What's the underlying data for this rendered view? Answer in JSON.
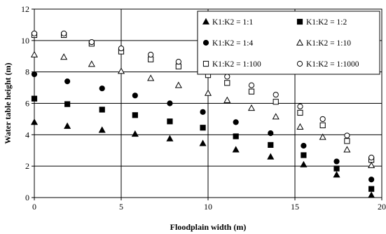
{
  "chart_data": {
    "type": "scatter",
    "xlabel": "Floodplain width (m)",
    "ylabel": "Water table height (m)",
    "xlim": [
      0,
      20
    ],
    "ylim": [
      0,
      12
    ],
    "x_ticks": [
      0,
      5,
      10,
      15,
      20
    ],
    "y_ticks": [
      0,
      2,
      4,
      6,
      8,
      10,
      12
    ],
    "grid": "major vertical and horizontal lines",
    "legend_position": "top-right",
    "series": [
      {
        "name": "K1:K2 = 1:1",
        "marker": "triangle-filled",
        "points": [
          [
            0,
            4.8
          ],
          [
            1.9,
            4.55
          ],
          [
            3.9,
            4.3
          ],
          [
            5.8,
            4.05
          ],
          [
            7.8,
            3.75
          ],
          [
            9.7,
            3.45
          ],
          [
            11.6,
            3.05
          ],
          [
            13.6,
            2.6
          ],
          [
            15.5,
            2.1
          ],
          [
            17.4,
            1.45
          ],
          [
            19.4,
            0.15
          ]
        ]
      },
      {
        "name": "K1:K2 = 1:2",
        "marker": "square-filled",
        "points": [
          [
            0,
            6.3
          ],
          [
            1.9,
            5.95
          ],
          [
            3.9,
            5.6
          ],
          [
            5.8,
            5.25
          ],
          [
            7.8,
            4.85
          ],
          [
            9.7,
            4.45
          ],
          [
            11.6,
            3.9
          ],
          [
            13.6,
            3.35
          ],
          [
            15.5,
            2.7
          ],
          [
            17.4,
            1.85
          ],
          [
            19.4,
            0.55
          ]
        ]
      },
      {
        "name": "K1:K2 = 1:4",
        "marker": "circle-filled",
        "points": [
          [
            0,
            7.85
          ],
          [
            1.9,
            7.4
          ],
          [
            3.9,
            6.95
          ],
          [
            5.8,
            6.5
          ],
          [
            7.8,
            6.0
          ],
          [
            9.7,
            5.45
          ],
          [
            11.6,
            4.8
          ],
          [
            13.6,
            4.1
          ],
          [
            15.5,
            3.3
          ],
          [
            17.4,
            2.3
          ],
          [
            19.4,
            1.15
          ]
        ]
      },
      {
        "name": "K1:K2 = 1:10",
        "marker": "triangle-open",
        "points": [
          [
            0,
            9.1
          ],
          [
            1.7,
            8.95
          ],
          [
            3.3,
            8.5
          ],
          [
            5.0,
            8.05
          ],
          [
            6.7,
            7.6
          ],
          [
            8.3,
            7.15
          ],
          [
            10.0,
            6.65
          ],
          [
            11.1,
            6.2
          ],
          [
            12.5,
            5.7
          ],
          [
            13.9,
            5.15
          ],
          [
            15.3,
            4.5
          ],
          [
            16.6,
            3.85
          ],
          [
            18.0,
            3.05
          ],
          [
            19.4,
            2.05
          ]
        ]
      },
      {
        "name": "K1:K2 = 1:100",
        "marker": "square-open",
        "points": [
          [
            0,
            10.35
          ],
          [
            1.7,
            10.35
          ],
          [
            3.3,
            9.8
          ],
          [
            5.0,
            9.3
          ],
          [
            6.7,
            8.8
          ],
          [
            8.3,
            8.35
          ],
          [
            10.0,
            7.8
          ],
          [
            11.1,
            7.3
          ],
          [
            12.5,
            6.75
          ],
          [
            13.9,
            6.1
          ],
          [
            15.3,
            5.4
          ],
          [
            16.6,
            4.6
          ],
          [
            18.0,
            3.6
          ],
          [
            19.4,
            2.4
          ]
        ]
      },
      {
        "name": "K1:K2 = 1:1000",
        "marker": "circle-open",
        "points": [
          [
            0,
            10.45
          ],
          [
            1.7,
            10.45
          ],
          [
            3.3,
            9.9
          ],
          [
            5.0,
            9.5
          ],
          [
            6.7,
            9.1
          ],
          [
            8.3,
            8.65
          ],
          [
            10.0,
            8.2
          ],
          [
            11.1,
            7.7
          ],
          [
            12.5,
            7.15
          ],
          [
            13.9,
            6.55
          ],
          [
            15.3,
            5.8
          ],
          [
            16.6,
            5.0
          ],
          [
            18.0,
            3.95
          ],
          [
            19.4,
            2.55
          ]
        ]
      }
    ]
  }
}
